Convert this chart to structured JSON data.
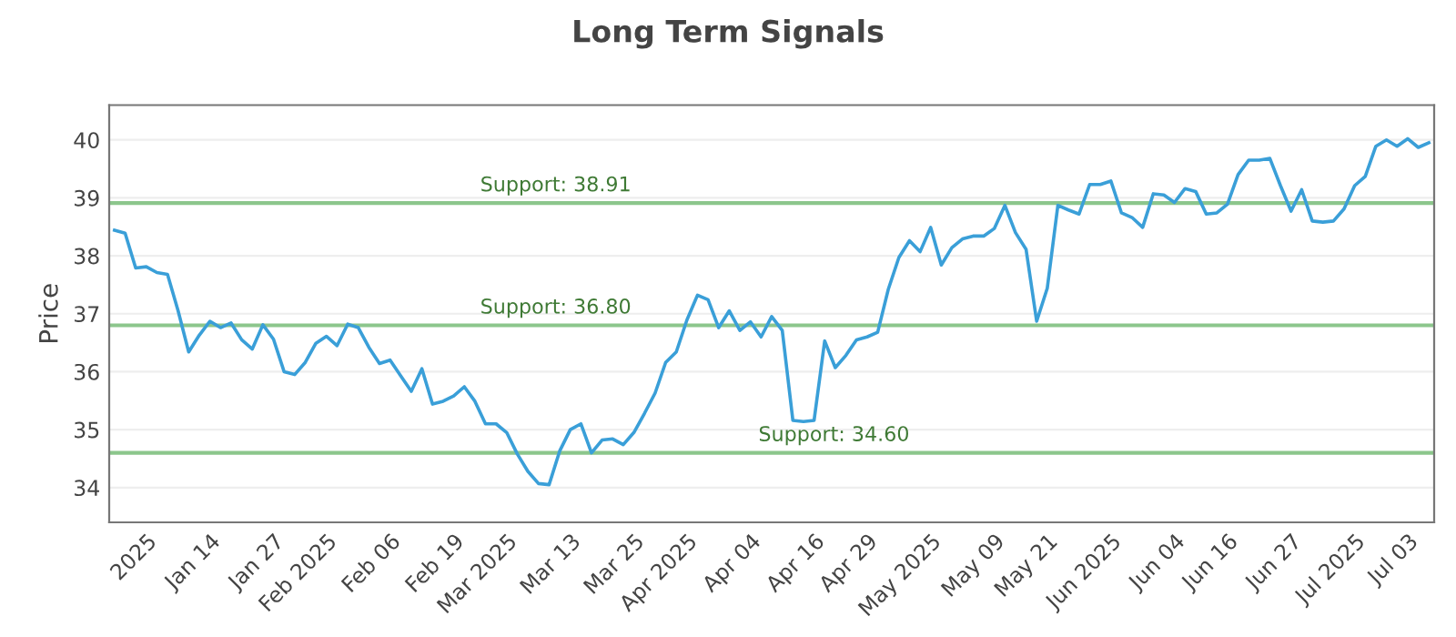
{
  "chart_data": {
    "type": "line",
    "title": "Long Term Signals",
    "ylabel": "Price",
    "categories": [
      null,
      null,
      null,
      "2025",
      null,
      null,
      null,
      null,
      null,
      "Jan 14",
      null,
      null,
      null,
      null,
      null,
      "Jan 27",
      null,
      null,
      null,
      null,
      "Feb 2025",
      null,
      null,
      null,
      null,
      null,
      "Feb 06",
      null,
      null,
      null,
      null,
      null,
      "Feb 19",
      null,
      null,
      null,
      null,
      "Mar 2025",
      null,
      null,
      null,
      null,
      null,
      "Mar 13",
      null,
      null,
      null,
      null,
      null,
      "Mar 25",
      null,
      null,
      null,
      null,
      "Apr 2025",
      null,
      null,
      null,
      null,
      null,
      "Apr 04",
      null,
      null,
      null,
      null,
      null,
      "Apr 16",
      null,
      null,
      null,
      null,
      "Apr 29",
      null,
      null,
      null,
      null,
      null,
      "May 2025",
      null,
      null,
      null,
      null,
      null,
      "May 09",
      null,
      null,
      null,
      null,
      "May 21",
      null,
      null,
      null,
      null,
      null,
      "Jun 2025",
      null,
      null,
      null,
      null,
      null,
      "Jun 04",
      null,
      null,
      null,
      null,
      "Jun 16",
      null,
      null,
      null,
      null,
      null,
      "Jun 27",
      null,
      null,
      null,
      null,
      null,
      "Jul 2025",
      null,
      null,
      null,
      null,
      "Jul 03",
      null,
      null
    ],
    "series": [
      {
        "color": "#3a9fd8",
        "values": [
          38.44,
          38.39,
          37.79,
          37.81,
          37.71,
          37.68,
          37.05,
          36.34,
          36.63,
          36.87,
          36.76,
          36.84,
          36.55,
          36.39,
          36.81,
          36.56,
          36.0,
          35.95,
          36.16,
          36.49,
          36.61,
          36.45,
          36.82,
          36.76,
          36.42,
          36.14,
          36.2,
          35.93,
          35.66,
          36.05,
          35.44,
          35.49,
          35.58,
          35.74,
          35.49,
          35.1,
          35.1,
          34.95,
          34.58,
          34.28,
          34.07,
          34.05,
          34.63,
          35.0,
          35.1,
          34.6,
          34.82,
          34.84,
          34.74,
          34.95,
          35.28,
          35.63,
          36.16,
          36.34,
          36.89,
          37.32,
          37.24,
          36.76,
          37.05,
          36.71,
          36.86,
          36.6,
          36.95,
          36.71,
          35.16,
          35.14,
          35.16,
          36.53,
          36.07,
          36.28,
          36.55,
          36.6,
          36.68,
          37.42,
          37.97,
          38.26,
          38.07,
          38.49,
          37.84,
          38.14,
          38.29,
          38.34,
          38.34,
          38.47,
          38.87,
          38.4,
          38.11,
          36.87,
          37.44,
          38.87,
          38.79,
          38.72,
          39.23,
          39.23,
          39.29,
          38.74,
          38.66,
          38.49,
          39.07,
          39.05,
          38.92,
          39.16,
          39.11,
          38.72,
          38.74,
          38.89,
          39.4,
          39.65,
          39.65,
          39.68,
          39.21,
          38.77,
          39.14,
          38.6,
          38.58,
          38.6,
          38.81,
          39.21,
          39.37,
          39.89,
          40.0,
          39.89,
          40.02,
          39.87,
          39.95
        ]
      }
    ],
    "ylim": [
      33.4,
      40.6
    ],
    "yticks": [
      34,
      35,
      36,
      37,
      38,
      39,
      40
    ],
    "grid": "y",
    "legend": false,
    "marker": "none",
    "line_style": "solid",
    "ref_lines": [
      {
        "axis": "y",
        "value": 38.91,
        "label": "Support: 38.91",
        "color": "#8cc68c"
      },
      {
        "axis": "y",
        "value": 36.8,
        "label": "Support: 36.80",
        "color": "#8cc68c"
      },
      {
        "axis": "y",
        "value": 34.6,
        "label": "Support: 34.60",
        "color": "#8cc68c"
      }
    ]
  }
}
